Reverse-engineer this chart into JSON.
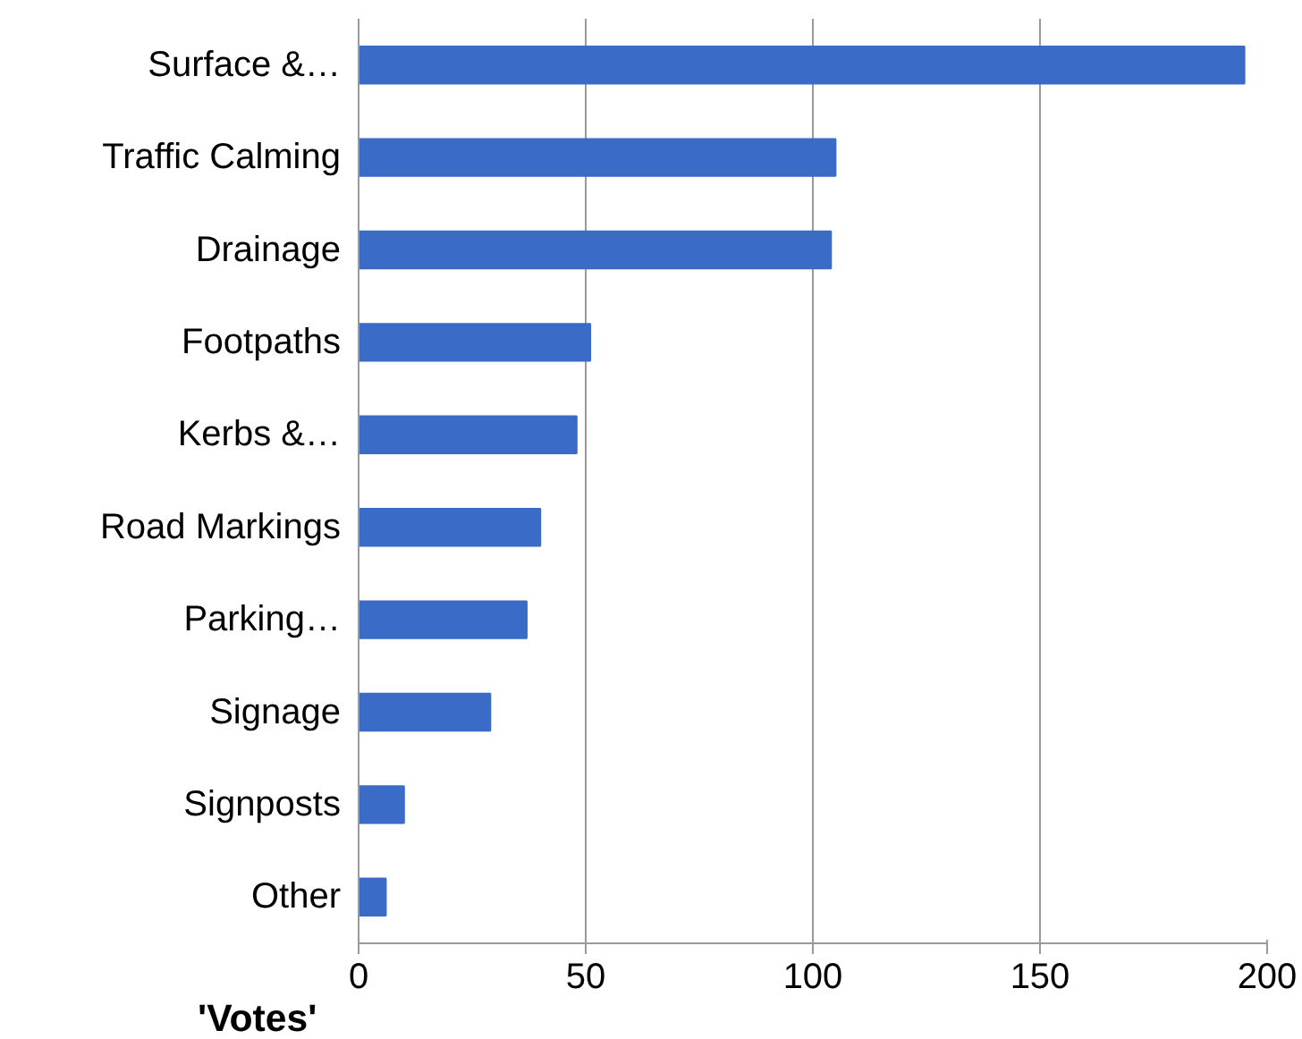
{
  "chart_data": {
    "type": "bar",
    "orientation": "horizontal",
    "xlabel": "'Votes'",
    "categories": [
      "Surface &…",
      "Traffic Calming",
      "Drainage",
      "Footpaths",
      "Kerbs &…",
      "Road Markings",
      "Parking…",
      "Signage",
      "Signposts",
      "Other"
    ],
    "values": [
      195,
      105,
      104,
      51,
      48,
      40,
      37,
      29,
      10,
      6
    ],
    "color": "#3a6bc6",
    "xlim": [
      0,
      200
    ],
    "xticks": [
      0,
      50,
      100,
      150,
      200
    ],
    "grid": "x"
  }
}
